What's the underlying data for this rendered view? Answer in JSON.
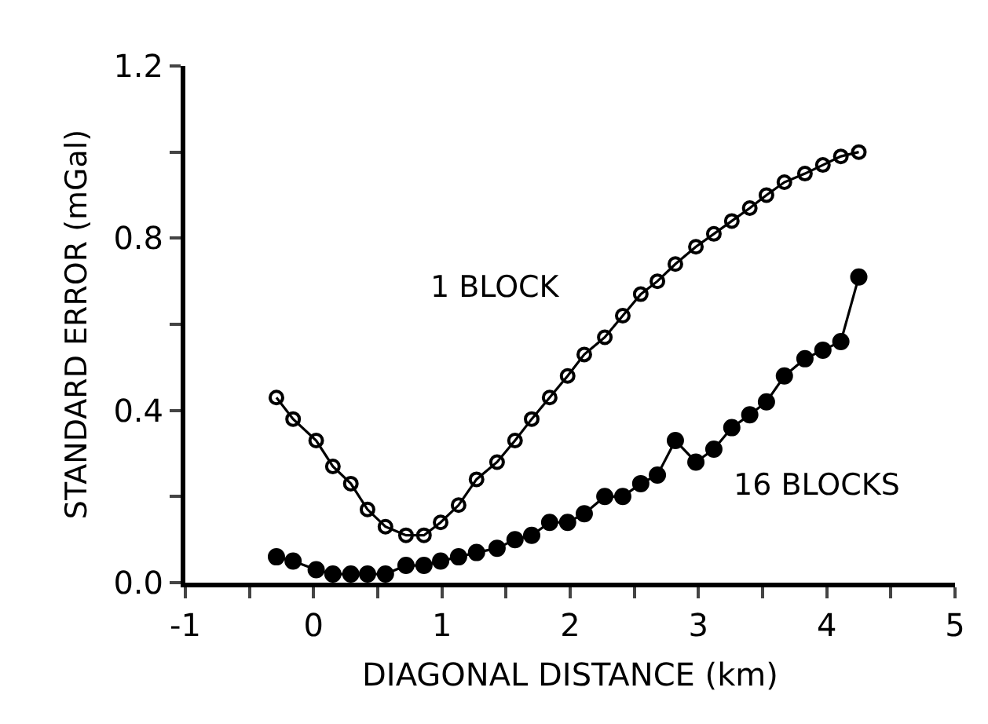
{
  "chart_data": {
    "type": "line",
    "xlabel": "DIAGONAL DISTANCE (km)",
    "ylabel": "STANDARD ERROR (mGal)",
    "xlim": [
      -1,
      5
    ],
    "xticks": [
      -1,
      {
        "value": -0.5,
        "label": null
      },
      0,
      {
        "value": 0.5,
        "label": null
      },
      1,
      {
        "value": 1.5,
        "label": null
      },
      2,
      {
        "value": 2.5,
        "label": null
      },
      3,
      {
        "value": 3.5,
        "label": null
      },
      4,
      {
        "value": 4.5,
        "label": null
      },
      5
    ],
    "ylim": [
      0,
      1.2
    ],
    "yticks": [
      {
        "value": 0,
        "label": "0.0"
      },
      {
        "value": 0.2,
        "label": null
      },
      0.4,
      {
        "value": 0.6,
        "label": null
      },
      0.8,
      {
        "value": 1.0,
        "label": null
      },
      1.2
    ],
    "grid": false,
    "legend": false,
    "marker": "circle",
    "line_style": "solid",
    "series": [
      {
        "name": "1 BLOCK",
        "color": "#000000",
        "marker": "circle-open",
        "x": [
          -0.29,
          -0.16,
          0.02,
          0.15,
          0.29,
          0.42,
          0.56,
          0.72,
          0.86,
          0.99,
          1.13,
          1.27,
          1.43,
          1.57,
          1.7,
          1.84,
          1.98,
          2.11,
          2.27,
          2.41,
          2.55,
          2.68,
          2.82,
          2.98,
          3.12,
          3.26,
          3.4,
          3.53,
          3.67,
          3.83,
          3.97,
          4.11,
          4.25
        ],
        "values": [
          0.43,
          0.38,
          0.33,
          0.27,
          0.23,
          0.17,
          0.13,
          0.11,
          0.11,
          0.14,
          0.18,
          0.24,
          0.28,
          0.33,
          0.38,
          0.43,
          0.48,
          0.53,
          0.57,
          0.62,
          0.67,
          0.7,
          0.74,
          0.78,
          0.81,
          0.84,
          0.87,
          0.9,
          0.93,
          0.95,
          0.97,
          0.99,
          1.0
        ]
      },
      {
        "name": "16 BLOCKS",
        "color": "#000000",
        "x": [
          -0.29,
          -0.16,
          0.02,
          0.15,
          0.29,
          0.42,
          0.56,
          0.72,
          0.86,
          0.99,
          1.13,
          1.27,
          1.43,
          1.57,
          1.7,
          1.84,
          1.98,
          2.11,
          2.27,
          2.41,
          2.55,
          2.68,
          2.82,
          2.98,
          3.12,
          3.26,
          3.4,
          3.53,
          3.67,
          3.83,
          3.97,
          4.11,
          4.25
        ],
        "values": [
          0.06,
          0.05,
          0.03,
          0.02,
          0.02,
          0.02,
          0.02,
          0.04,
          0.04,
          0.05,
          0.06,
          0.07,
          0.08,
          0.1,
          0.11,
          0.14,
          0.14,
          0.16,
          0.2,
          0.2,
          0.23,
          0.25,
          0.33,
          0.28,
          0.31,
          0.36,
          0.39,
          0.42,
          0.48,
          0.52,
          0.54,
          0.56,
          0.71
        ]
      }
    ]
  }
}
